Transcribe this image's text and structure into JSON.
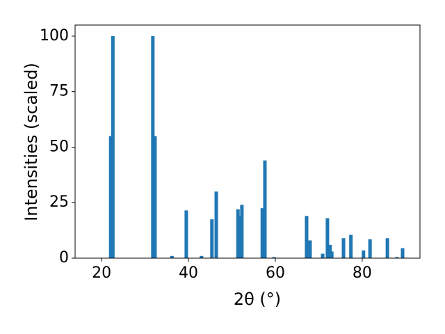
{
  "chart_data": {
    "type": "bar",
    "xlabel": "2θ (°)",
    "ylabel": "Intensities (scaled)",
    "color": "#1f77b4",
    "x": [
      22.1,
      22.6,
      31.8,
      32.3,
      36.2,
      39.5,
      43.0,
      45.4,
      46.4,
      51.4,
      51.9,
      52.3,
      57.0,
      57.6,
      59.7,
      67.2,
      68.0,
      70.9,
      72.0,
      72.6,
      73.0,
      75.7,
      77.4,
      80.3,
      81.8,
      85.8,
      88.0,
      89.3
    ],
    "values": [
      55,
      100,
      100,
      55,
      1,
      21.5,
      1,
      17.5,
      30,
      22,
      19,
      24,
      22.5,
      44,
      0.5,
      19,
      8,
      2,
      18,
      6,
      3,
      9,
      10.5,
      3.5,
      8.5,
      9,
      0.5,
      4.5
    ],
    "xlim": [
      13.9,
      93.3
    ],
    "ylim": [
      0,
      105
    ],
    "xticks": [
      20,
      40,
      60,
      80
    ],
    "yticks": [
      0,
      25,
      50,
      75,
      100
    ]
  }
}
